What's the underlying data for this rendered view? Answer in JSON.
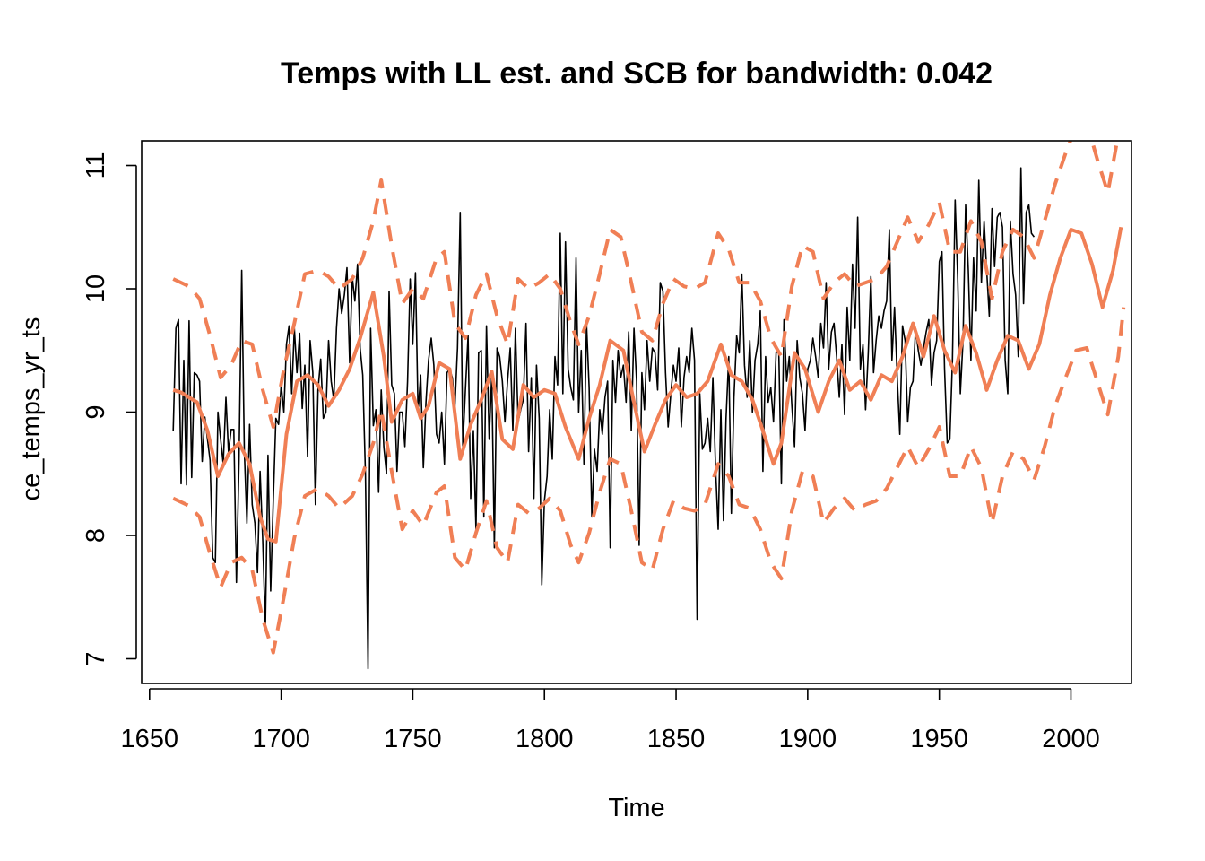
{
  "chart_data": {
    "type": "line",
    "title": "Temps with LL est. and SCB for bandwidth: 0.042",
    "xlabel": "Time",
    "ylabel": "ce_temps_yr_ts",
    "x_ticks": [
      "1650",
      "1700",
      "1750",
      "1800",
      "1850",
      "1900",
      "1950",
      "2000"
    ],
    "y_ticks": [
      "7",
      "8",
      "9",
      "10",
      "11"
    ],
    "xlim": [
      1647,
      2023
    ],
    "ylim": [
      6.8,
      11.2
    ],
    "grid": false,
    "legend": "none",
    "colors": {
      "data": "#000000",
      "estimate": "#f07f55",
      "band": "#f07f55"
    },
    "series": [
      {
        "role": "observed",
        "x_start": 1659,
        "x_step": 1,
        "values": [
          8.85,
          9.68,
          9.75,
          8.42,
          9.42,
          8.41,
          9.74,
          8.47,
          9.32,
          9.3,
          9.25,
          8.6,
          8.96,
          8.78,
          8.61,
          7.82,
          7.78,
          9.0,
          8.78,
          8.58,
          9.12,
          8.67,
          8.86,
          8.86,
          7.62,
          8.6,
          10.15,
          8.69,
          8.1,
          8.9,
          8.25,
          8.1,
          7.7,
          8.52,
          7.95,
          7.24,
          8.65,
          7.55,
          8.28,
          8.95,
          8.9,
          9.22,
          9.0,
          9.55,
          9.7,
          9.15,
          9.68,
          9.32,
          9.64,
          9.03,
          9.38,
          8.64,
          9.58,
          9.32,
          8.25,
          9.18,
          9.43,
          8.95,
          9.0,
          9.58,
          9.25,
          9.1,
          9.68,
          10.0,
          9.8,
          9.95,
          10.17,
          9.4,
          10.1,
          9.9,
          10.2,
          9.52,
          9.3,
          8.5,
          6.92,
          9.68,
          8.89,
          9.02,
          8.35,
          9.18,
          8.72,
          8.5,
          9.98,
          9.22,
          9.15,
          8.52,
          9.0,
          9.0,
          8.72,
          9.25,
          10.08,
          9.55,
          10.13,
          9.0,
          9.3,
          8.55,
          9.08,
          9.42,
          9.6,
          9.38,
          8.82,
          8.75,
          9.0,
          8.58,
          9.32,
          9.35,
          9.28,
          9.05,
          9.52,
          10.62,
          8.72,
          9.18,
          9.62,
          8.3,
          8.85,
          8.05,
          9.48,
          9.5,
          8.15,
          9.7,
          8.78,
          9.3,
          7.9,
          9.52,
          9.45,
          9.25,
          8.92,
          9.25,
          9.52,
          8.85,
          9.68,
          8.92,
          9.02,
          9.1,
          9.72,
          8.68,
          9.28,
          8.3,
          9.38,
          8.95,
          7.6,
          8.28,
          8.48,
          9.02,
          8.62,
          9.45,
          9.22,
          10.45,
          9.15,
          10.38,
          9.35,
          9.2,
          9.1,
          10.25,
          9.0,
          9.5,
          8.58,
          9.72,
          9.2,
          8.15,
          8.7,
          8.52,
          9.02,
          8.82,
          9.12,
          9.25,
          7.9,
          9.42,
          9.08,
          9.5,
          9.28,
          9.38,
          9.08,
          9.65,
          8.85,
          9.68,
          9.25,
          7.92,
          9.32,
          9.02,
          9.58,
          9.25,
          9.52,
          9.48,
          9.18,
          10.05,
          9.98,
          9.32,
          8.88,
          9.15,
          9.38,
          9.25,
          9.52,
          8.88,
          9.28,
          9.45,
          9.32,
          9.68,
          9.42,
          7.32,
          9.15,
          8.7,
          8.75,
          8.95,
          8.68,
          9.28,
          8.55,
          8.05,
          9.02,
          8.12,
          8.95,
          9.45,
          8.18,
          9.12,
          9.62,
          9.48,
          10.12,
          9.38,
          9.12,
          9.58,
          9.0,
          9.42,
          9.55,
          9.82,
          8.52,
          9.45,
          9.08,
          9.2,
          8.92,
          9.48,
          9.5,
          8.42,
          9.75,
          9.25,
          9.45,
          9.05,
          8.72,
          9.58,
          9.28,
          9.15,
          8.85,
          9.35,
          9.42,
          9.6,
          9.45,
          9.28,
          9.72,
          9.52,
          10.05,
          9.35,
          9.65,
          9.72,
          9.45,
          9.12,
          9.55,
          8.98,
          9.85,
          9.42,
          10.2,
          9.68,
          10.58,
          9.35,
          9.55,
          9.02,
          9.48,
          10.1,
          9.32,
          9.58,
          9.78,
          9.68,
          9.82,
          9.9,
          10.48,
          9.42,
          9.85,
          9.28,
          8.82,
          9.7,
          9.58,
          8.92,
          9.2,
          9.25,
          9.68,
          9.5,
          9.38,
          9.52,
          9.65,
          9.75,
          9.22,
          9.48,
          9.58,
          10.22,
          10.3,
          9.35,
          8.75,
          8.78,
          9.42,
          10.72,
          10.08,
          9.15,
          9.58,
          10.68,
          10.15,
          9.42,
          10.25,
          9.82,
          10.88,
          10.05,
          10.55,
          10.15,
          9.78,
          10.65,
          10.18,
          10.58,
          10.62,
          10.5,
          9.42,
          9.15,
          10.55,
          10.12,
          9.95,
          9.45,
          10.98,
          9.88,
          10.62,
          10.68,
          10.45,
          10.42
        ],
        "note_values_approx": true
      },
      {
        "role": "ll_estimate",
        "x": [
          1659,
          1662,
          1668,
          1672,
          1676,
          1680,
          1684,
          1688,
          1692,
          1695,
          1698,
          1702,
          1706,
          1710,
          1714,
          1718,
          1722,
          1726,
          1730,
          1735,
          1739,
          1742,
          1746,
          1750,
          1753,
          1756,
          1760,
          1764,
          1768,
          1772,
          1776,
          1780,
          1784,
          1788,
          1792,
          1796,
          1800,
          1804,
          1808,
          1813,
          1817,
          1821,
          1825,
          1830,
          1834,
          1838,
          1842,
          1846,
          1850,
          1854,
          1858,
          1862,
          1867,
          1871,
          1875,
          1879,
          1883,
          1887,
          1890,
          1895,
          1899,
          1904,
          1908,
          1912,
          1916,
          1920,
          1924,
          1928,
          1932,
          1936,
          1940,
          1944,
          1948,
          1952,
          1956,
          1960,
          1964,
          1968,
          1972,
          1976,
          1980,
          1984,
          1988,
          1992,
          1996,
          2000,
          2004,
          2008,
          2012,
          2016,
          2019
        ],
        "values": [
          9.18,
          9.16,
          9.08,
          8.85,
          8.48,
          8.66,
          8.75,
          8.58,
          8.15,
          7.97,
          7.95,
          8.82,
          9.25,
          9.3,
          9.22,
          9.05,
          9.18,
          9.35,
          9.6,
          9.97,
          9.45,
          8.92,
          9.1,
          9.15,
          8.95,
          9.05,
          9.4,
          9.35,
          8.62,
          8.9,
          9.1,
          9.33,
          8.78,
          8.7,
          9.22,
          9.12,
          9.18,
          9.15,
          8.88,
          8.62,
          8.95,
          9.22,
          9.58,
          9.5,
          9.08,
          8.68,
          8.9,
          9.1,
          9.22,
          9.12,
          9.15,
          9.25,
          9.55,
          9.3,
          9.25,
          9.1,
          8.85,
          8.58,
          8.75,
          9.48,
          9.35,
          9.0,
          9.25,
          9.42,
          9.18,
          9.25,
          9.1,
          9.3,
          9.25,
          9.45,
          9.72,
          9.45,
          9.78,
          9.5,
          9.32,
          9.7,
          9.48,
          9.18,
          9.42,
          9.62,
          9.58,
          9.35,
          9.55,
          9.95,
          10.25,
          10.48,
          10.45,
          10.2,
          9.85,
          10.15,
          10.5
        ],
        "note_values_approx": true
      },
      {
        "role": "scb_upper",
        "x": [
          1659,
          1665,
          1669,
          1673,
          1677,
          1681,
          1685,
          1689,
          1693,
          1697,
          1701,
          1705,
          1709,
          1714,
          1718,
          1722,
          1727,
          1731,
          1735,
          1738,
          1742,
          1746,
          1750,
          1754,
          1759,
          1762,
          1766,
          1770,
          1774,
          1778,
          1782,
          1786,
          1790,
          1794,
          1798,
          1802,
          1806,
          1810,
          1813,
          1817,
          1821,
          1825,
          1829,
          1833,
          1837,
          1841,
          1845,
          1849,
          1853,
          1857,
          1861,
          1866,
          1870,
          1874,
          1878,
          1882,
          1886,
          1890,
          1894,
          1898,
          1902,
          1906,
          1910,
          1914,
          1918,
          1922,
          1926,
          1930,
          1934,
          1938,
          1942,
          1946,
          1950,
          1954,
          1958,
          1962,
          1966,
          1970,
          1974,
          1978,
          1982,
          1986,
          1990,
          1994,
          1998,
          2002,
          2006,
          2010,
          2014,
          2018,
          2020
        ],
        "values": [
          10.08,
          10.02,
          9.92,
          9.62,
          9.28,
          9.38,
          9.58,
          9.55,
          9.18,
          8.88,
          9.35,
          9.72,
          10.12,
          10.15,
          10.1,
          10.0,
          10.08,
          10.25,
          10.55,
          10.88,
          10.35,
          9.88,
          10.0,
          9.92,
          10.25,
          10.3,
          9.72,
          9.6,
          9.95,
          10.12,
          9.78,
          9.55,
          10.08,
          10.0,
          10.05,
          10.12,
          10.0,
          9.72,
          9.55,
          9.78,
          10.12,
          10.48,
          10.42,
          10.05,
          9.65,
          9.58,
          9.88,
          10.08,
          10.02,
          10.0,
          10.05,
          10.45,
          10.32,
          10.05,
          10.05,
          9.9,
          9.6,
          9.45,
          10.02,
          10.35,
          10.3,
          9.92,
          10.05,
          10.12,
          10.02,
          10.05,
          10.08,
          10.18,
          10.38,
          10.58,
          10.38,
          10.52,
          10.7,
          10.3,
          10.3,
          10.55,
          10.38,
          9.92,
          10.3,
          10.48,
          10.42,
          10.25,
          10.55,
          10.85,
          11.1,
          11.32,
          11.35,
          11.05,
          10.78,
          11.25,
          11.35
        ],
        "note_values_approx": true
      },
      {
        "role": "scb_lower",
        "x": [
          1659,
          1665,
          1669,
          1673,
          1677,
          1681,
          1685,
          1689,
          1693,
          1697,
          1701,
          1705,
          1709,
          1714,
          1718,
          1722,
          1727,
          1731,
          1735,
          1738,
          1742,
          1746,
          1750,
          1754,
          1759,
          1762,
          1766,
          1770,
          1774,
          1778,
          1782,
          1786,
          1790,
          1794,
          1798,
          1802,
          1806,
          1810,
          1813,
          1817,
          1821,
          1825,
          1829,
          1833,
          1837,
          1841,
          1845,
          1849,
          1853,
          1857,
          1861,
          1866,
          1870,
          1874,
          1878,
          1882,
          1886,
          1890,
          1894,
          1898,
          1902,
          1906,
          1910,
          1914,
          1918,
          1922,
          1926,
          1930,
          1934,
          1938,
          1942,
          1946,
          1950,
          1954,
          1958,
          1962,
          1966,
          1970,
          1974,
          1978,
          1982,
          1986,
          1990,
          1994,
          1998,
          2002,
          2006,
          2010,
          2014,
          2018,
          2020
        ],
        "values": [
          8.3,
          8.24,
          8.15,
          7.85,
          7.58,
          7.78,
          7.82,
          7.72,
          7.32,
          7.05,
          7.5,
          7.98,
          8.32,
          8.38,
          8.32,
          8.22,
          8.32,
          8.5,
          8.75,
          9.02,
          8.52,
          8.05,
          8.2,
          8.08,
          8.35,
          8.4,
          7.82,
          7.72,
          8.02,
          8.28,
          7.9,
          7.78,
          8.25,
          8.18,
          8.22,
          8.3,
          8.2,
          7.92,
          7.78,
          8.02,
          8.35,
          8.62,
          8.58,
          8.2,
          7.78,
          7.72,
          8.05,
          8.28,
          8.22,
          8.2,
          8.25,
          8.58,
          8.48,
          8.25,
          8.22,
          8.05,
          7.78,
          7.65,
          8.2,
          8.52,
          8.48,
          8.1,
          8.22,
          8.3,
          8.2,
          8.25,
          8.28,
          8.38,
          8.55,
          8.72,
          8.55,
          8.7,
          8.88,
          8.48,
          8.48,
          8.72,
          8.55,
          8.1,
          8.48,
          8.68,
          8.62,
          8.45,
          8.72,
          9.05,
          9.28,
          9.5,
          9.52,
          9.25,
          8.98,
          9.45,
          9.85
        ],
        "note_values_approx": true
      }
    ]
  }
}
